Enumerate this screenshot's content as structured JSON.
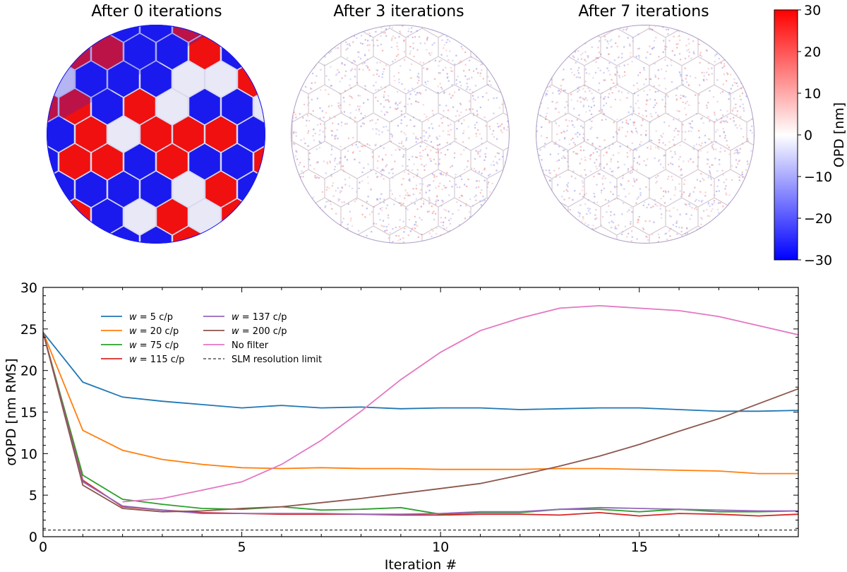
{
  "panels": [
    {
      "title": "After 0 iterations",
      "state": "unconverged"
    },
    {
      "title": "After 3 iterations",
      "state": "converged"
    },
    {
      "title": "After 7 iterations",
      "state": "converged"
    }
  ],
  "colorbar": {
    "label": "OPD [nm]",
    "ticks": [
      "30",
      "20",
      "10",
      "0",
      "−10",
      "−20",
      "−30"
    ],
    "min": -30,
    "max": 30,
    "colors": {
      "low": "#0000ff",
      "mid": "#ffffff",
      "high": "#ff0000"
    }
  },
  "chart_data": {
    "type": "line",
    "title": "",
    "xlabel": "Iteration #",
    "ylabel": "σOPD [nm RMS]",
    "xlim": [
      0,
      19
    ],
    "ylim": [
      0,
      30
    ],
    "xticks": [
      0,
      5,
      10,
      15
    ],
    "yticks": [
      0,
      5,
      10,
      15,
      20,
      25,
      30
    ],
    "legend_position": "upper-left",
    "x": [
      0,
      1,
      2,
      3,
      4,
      5,
      6,
      7,
      8,
      9,
      10,
      11,
      12,
      13,
      14,
      15,
      16,
      17,
      18,
      19
    ],
    "series": [
      {
        "name": "w = 5 c/p",
        "w": "5",
        "color": "#1f77b4",
        "values": [
          24.6,
          18.6,
          16.8,
          16.3,
          15.9,
          15.5,
          15.8,
          15.5,
          15.6,
          15.4,
          15.5,
          15.5,
          15.3,
          15.4,
          15.5,
          15.5,
          15.3,
          15.1,
          15.1,
          15.2
        ]
      },
      {
        "name": "w = 20 c/p",
        "w": "20",
        "color": "#ff7f0e",
        "values": [
          24.6,
          12.8,
          10.4,
          9.3,
          8.7,
          8.3,
          8.2,
          8.3,
          8.2,
          8.2,
          8.1,
          8.1,
          8.1,
          8.2,
          8.2,
          8.1,
          8.0,
          7.9,
          7.6,
          7.6
        ]
      },
      {
        "name": "w = 75 c/p",
        "w": "75",
        "color": "#2ca02c",
        "values": [
          24.6,
          7.4,
          4.5,
          3.9,
          3.4,
          3.3,
          3.6,
          3.2,
          3.3,
          3.5,
          2.7,
          2.9,
          2.9,
          3.3,
          3.3,
          3.0,
          3.3,
          3.0,
          3.0,
          3.1
        ]
      },
      {
        "name": "w = 115 c/p",
        "w": "115",
        "color": "#d62728",
        "values": [
          24.6,
          6.8,
          3.6,
          3.2,
          2.9,
          2.8,
          2.7,
          2.7,
          2.7,
          2.6,
          2.6,
          2.7,
          2.7,
          2.6,
          2.9,
          2.5,
          2.8,
          2.7,
          2.5,
          2.7
        ]
      },
      {
        "name": "w = 137 c/p",
        "w": "137",
        "color": "#9467bd",
        "values": [
          24.6,
          6.6,
          3.7,
          3.2,
          2.8,
          2.8,
          2.8,
          2.8,
          2.7,
          2.7,
          2.8,
          3.0,
          3.0,
          3.3,
          3.5,
          3.4,
          3.3,
          3.2,
          3.1,
          3.1
        ]
      },
      {
        "name": "w = 200 c/p",
        "w": "200",
        "color": "#8c564b",
        "values": [
          24.6,
          6.2,
          3.4,
          3.0,
          3.1,
          3.4,
          3.6,
          4.1,
          4.6,
          5.2,
          5.8,
          6.4,
          7.4,
          8.5,
          9.7,
          11.1,
          12.7,
          14.2,
          16.0,
          17.8
        ]
      },
      {
        "name": "No filter",
        "color": "#e377c2",
        "values": [
          null,
          null,
          4.2,
          4.6,
          5.6,
          6.6,
          8.7,
          11.6,
          15.1,
          18.9,
          22.2,
          24.8,
          26.3,
          27.5,
          27.8,
          27.5,
          27.2,
          26.5,
          25.4,
          24.3
        ]
      },
      {
        "name": "SLM resolution limit",
        "color": "#000000",
        "dashed": true,
        "values": [
          0.8,
          0.8,
          0.8,
          0.8,
          0.8,
          0.8,
          0.8,
          0.8,
          0.8,
          0.8,
          0.8,
          0.8,
          0.8,
          0.8,
          0.8,
          0.8,
          0.8,
          0.8,
          0.8,
          0.8
        ]
      }
    ]
  }
}
